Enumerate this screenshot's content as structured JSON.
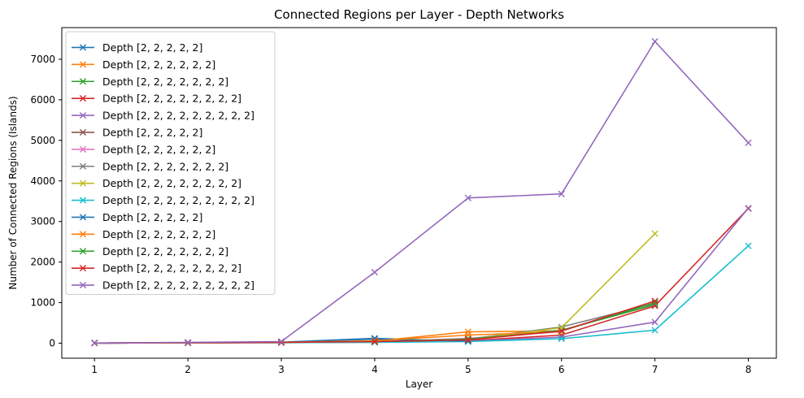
{
  "chart_data": {
    "type": "line",
    "title": "Connected Regions per Layer - Depth Networks",
    "xlabel": "Layer",
    "ylabel": "Number of Connected Regions (Islands)",
    "xlim": [
      0.65,
      8.3
    ],
    "ylim": [
      -370,
      7780
    ],
    "xticks": [
      1,
      2,
      3,
      4,
      5,
      6,
      7,
      8
    ],
    "yticks": [
      0,
      1000,
      2000,
      3000,
      4000,
      5000,
      6000,
      7000
    ],
    "grid": false,
    "legend_position": "upper-left",
    "marker": "x",
    "series": [
      {
        "name": "Depth [2, 2, 2, 2, 2]",
        "color": "#1f77b4",
        "x": [
          1,
          2,
          3,
          4,
          5
        ],
        "y": [
          5,
          10,
          25,
          120,
          40
        ]
      },
      {
        "name": "Depth [2, 2, 2, 2, 2, 2]",
        "color": "#ff7f0e",
        "x": [
          1,
          2,
          3,
          4,
          5,
          6
        ],
        "y": [
          5,
          10,
          20,
          50,
          280,
          300
        ]
      },
      {
        "name": "Depth [2, 2, 2, 2, 2, 2, 2]",
        "color": "#2ca02c",
        "x": [
          1,
          2,
          3,
          4,
          5,
          6,
          7
        ],
        "y": [
          5,
          10,
          20,
          30,
          80,
          320,
          950
        ]
      },
      {
        "name": "Depth [2, 2, 2, 2, 2, 2, 2, 2]",
        "color": "#d62728",
        "x": [
          1,
          2,
          3,
          4,
          5,
          6,
          7,
          8
        ],
        "y": [
          5,
          10,
          15,
          25,
          60,
          200,
          920,
          3320
        ]
      },
      {
        "name": "Depth [2, 2, 2, 2, 2, 2, 2, 2, 2]",
        "color": "#9467bd",
        "x": [
          1,
          2,
          3,
          4,
          5,
          6,
          7,
          8
        ],
        "y": [
          5,
          15,
          25,
          30,
          50,
          150,
          520,
          3330
        ]
      },
      {
        "name": "Depth [2, 2, 2, 2, 2]",
        "color": "#8c564b",
        "x": [
          1,
          2,
          3,
          4,
          5
        ],
        "y": [
          5,
          10,
          20,
          40,
          80
        ]
      },
      {
        "name": "Depth [2, 2, 2, 2, 2, 2]",
        "color": "#e377c2",
        "x": [
          1,
          2,
          3,
          4,
          5,
          6
        ],
        "y": [
          5,
          10,
          15,
          35,
          120,
          280
        ]
      },
      {
        "name": "Depth [2, 2, 2, 2, 2, 2, 2]",
        "color": "#7f7f7f",
        "x": [
          1,
          2,
          3,
          4,
          5,
          6,
          7
        ],
        "y": [
          5,
          10,
          20,
          30,
          100,
          400,
          980
        ]
      },
      {
        "name": "Depth [2, 2, 2, 2, 2, 2, 2, 2]",
        "color": "#bcbd22",
        "x": [
          1,
          2,
          3,
          4,
          5,
          6,
          7
        ],
        "y": [
          5,
          10,
          20,
          30,
          90,
          380,
          2700
        ]
      },
      {
        "name": "Depth [2, 2, 2, 2, 2, 2, 2, 2, 2]",
        "color": "#17becf",
        "x": [
          1,
          2,
          3,
          4,
          5,
          6,
          7,
          8
        ],
        "y": [
          5,
          10,
          15,
          20,
          40,
          110,
          320,
          2400
        ]
      },
      {
        "name": "Depth [2, 2, 2, 2, 2]",
        "color": "#1f77b4",
        "x": [
          1,
          2,
          3,
          4,
          5
        ],
        "y": [
          5,
          10,
          20,
          100,
          50
        ]
      },
      {
        "name": "Depth [2, 2, 2, 2, 2, 2]",
        "color": "#ff7f0e",
        "x": [
          1,
          2,
          3,
          4,
          5,
          6
        ],
        "y": [
          5,
          10,
          20,
          60,
          200,
          280
        ]
      },
      {
        "name": "Depth [2, 2, 2, 2, 2, 2, 2]",
        "color": "#2ca02c",
        "x": [
          1,
          2,
          3,
          4,
          5,
          6,
          7
        ],
        "y": [
          5,
          10,
          20,
          40,
          100,
          300,
          1000
        ]
      },
      {
        "name": "Depth [2, 2, 2, 2, 2, 2, 2, 2]",
        "color": "#d62728",
        "x": [
          1,
          2,
          3,
          4,
          5,
          6,
          7
        ],
        "y": [
          5,
          10,
          20,
          40,
          80,
          300,
          1040
        ]
      },
      {
        "name": "Depth [2, 2, 2, 2, 2, 2, 2, 2, 2]",
        "color": "#9467bd",
        "x": [
          1,
          2,
          3,
          4,
          5,
          6,
          7,
          8
        ],
        "y": [
          5,
          20,
          40,
          1750,
          3580,
          3680,
          7440,
          4940
        ]
      }
    ]
  }
}
